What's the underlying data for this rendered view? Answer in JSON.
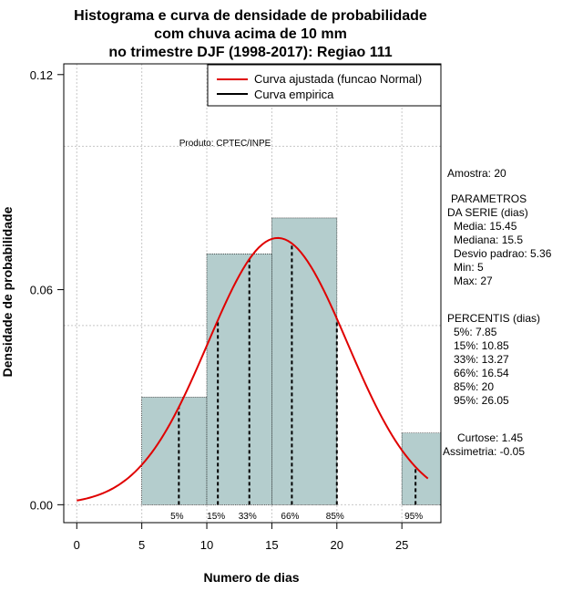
{
  "chart_data": {
    "type": "bar",
    "title_lines": [
      "Histograma e curva de densidade de probabilidade",
      "com chuva acima de 10 mm",
      "no trimestre DJF (1998-2017): Regiao 111"
    ],
    "xlabel": "Numero de dias",
    "ylabel": "Densidade de probabilidade",
    "xlim": [
      -1,
      28
    ],
    "ylim": [
      -0.005,
      0.123
    ],
    "x_ticks": [
      0,
      5,
      10,
      15,
      20,
      25
    ],
    "y_ticks": [
      0.0,
      0.06,
      0.12
    ],
    "y_tick_labels": [
      "0.00",
      "0.06",
      "0.12"
    ],
    "grid": true,
    "bins": [
      {
        "start": 5,
        "end": 10,
        "density": 0.03
      },
      {
        "start": 10,
        "end": 15,
        "density": 0.07
      },
      {
        "start": 15,
        "end": 20,
        "density": 0.08
      },
      {
        "start": 20,
        "end": 25,
        "density": 0.0
      },
      {
        "start": 25,
        "end": 28,
        "density": 0.02
      }
    ],
    "normal_fit": {
      "mean": 15.45,
      "sd": 5.36,
      "from": 0,
      "to": 27,
      "color": "#e00000"
    },
    "percentiles": [
      {
        "label": "5%",
        "value": 7.85
      },
      {
        "label": "15%",
        "value": 10.85
      },
      {
        "label": "33%",
        "value": 13.27
      },
      {
        "label": "66%",
        "value": 16.54
      },
      {
        "label": "85%",
        "value": 20
      },
      {
        "label": "95%",
        "value": 26.05
      }
    ],
    "legend": [
      {
        "label": "Curva ajustada (funcao Normal)",
        "color": "#e00000"
      },
      {
        "label": "Curva empirica",
        "color": "#000000"
      }
    ],
    "legend_position": "top-right",
    "watermark": "Produto: CPTEC/INPE",
    "bar_color": "#b4cdcd"
  },
  "sidebar": {
    "amostra": "Amostra: 20",
    "params_title_1": "PARAMETROS",
    "params_title_2": "DA SERIE (dias)",
    "params": [
      "Media: 15.45",
      "Mediana: 15.5",
      "Desvio padrao: 5.36",
      "Min: 5",
      "Max: 27"
    ],
    "percentis_title": "PERCENTIS (dias)",
    "percentis": [
      "5%: 7.85",
      "15%: 10.85",
      "33%: 13.27",
      "66%: 16.54",
      "85%: 20",
      "95%: 26.05"
    ],
    "curtose": "Curtose: 1.45",
    "assimetria": "Assimetria: -0.05"
  }
}
